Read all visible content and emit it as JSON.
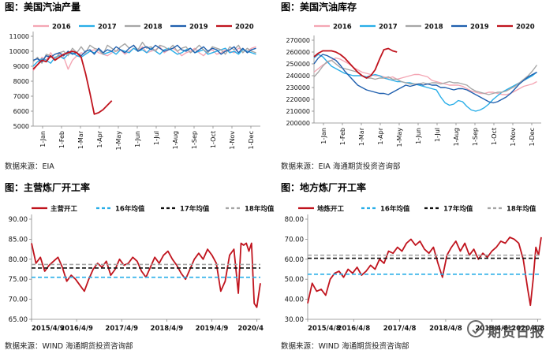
{
  "charts": [
    {
      "title": "图：美国汽油产量",
      "source": "数据来源：EIA",
      "chart_data": {
        "type": "line",
        "x_ticks": [
          "1-Jan",
          "1-Feb",
          "1-Mar",
          "1-Apr",
          "1-May",
          "1-Jun",
          "1-Jul",
          "1-Aug",
          "1-Sep",
          "1-Oct",
          "1-Nov",
          "1-Dec"
        ],
        "y_ticks": [
          5000,
          6000,
          7000,
          8000,
          9000,
          10000,
          11000
        ],
        "ylim": [
          5000,
          11000
        ],
        "x_range": [
          0,
          52
        ],
        "grid": false,
        "legend_placement": "top",
        "series": [
          {
            "name": "2016",
            "color": "#f4a6b4",
            "values": [
              8700,
              9100,
              9600,
              9400,
              9900,
              9500,
              9800,
              9600,
              8800,
              9400,
              9700,
              9900,
              9800,
              10000,
              10100,
              9900,
              9800,
              9700,
              9900,
              10000,
              10100,
              9800,
              10000,
              10200,
              10000,
              10300,
              9900,
              10000,
              10100,
              10300,
              9900,
              10100,
              10200,
              10000,
              9700,
              9900,
              10000,
              10200,
              9900,
              9700,
              10000,
              10100,
              9800,
              9900,
              10100,
              10000,
              9900,
              10200,
              10100,
              10000,
              10200,
              10300
            ]
          },
          {
            "name": "2017",
            "color": "#29aee8",
            "values": [
              9000,
              9300,
              9500,
              9400,
              9200,
              9600,
              9700,
              9500,
              9800,
              9900,
              9700,
              9600,
              9800,
              10000,
              9900,
              10100,
              9800,
              9900,
              10000,
              9800,
              10100,
              10000,
              9900,
              10200,
              10000,
              10100,
              9900,
              10200,
              10000,
              9800,
              10100,
              10200,
              10000,
              9800,
              9900,
              10100,
              10200,
              9900,
              10000,
              10100,
              9800,
              9900,
              10000,
              10100,
              10200,
              9900,
              10000,
              9800,
              10100,
              10000,
              9900,
              9800
            ]
          },
          {
            "name": "2018",
            "color": "#a6a6a6",
            "values": [
              9300,
              9600,
              9200,
              9800,
              9700,
              9400,
              9900,
              10000,
              9700,
              10200,
              9900,
              10300,
              9900,
              10400,
              10200,
              10100,
              9800,
              10400,
              10200,
              10000,
              10300,
              10500,
              10200,
              10400,
              10100,
              10600,
              10200,
              10300,
              10000,
              10400,
              10300,
              10100,
              10400,
              10000,
              10200,
              10300,
              9900,
              10100,
              10400,
              10100,
              9900,
              10300,
              10200,
              10100,
              9800,
              10300,
              10100,
              10400,
              9900,
              10200,
              10000,
              9900
            ]
          },
          {
            "name": "2019",
            "color": "#1f5fae",
            "values": [
              9400,
              9500,
              9300,
              9700,
              9600,
              9800,
              9900,
              9700,
              10000,
              9800,
              9900,
              9700,
              10000,
              10100,
              9800,
              10200,
              9900,
              10100,
              10000,
              10300,
              10100,
              9900,
              10200,
              10400,
              10000,
              10200,
              10300,
              10100,
              10400,
              10200,
              10000,
              10100,
              10200,
              10400,
              10100,
              10000,
              10200,
              9900,
              10100,
              10300,
              10000,
              10200,
              10100,
              9800,
              10000,
              10100,
              10300,
              9900,
              10200,
              9900,
              10100,
              10200
            ]
          },
          {
            "name": "2020",
            "color": "#c0141e",
            "values": [
              8800,
              9100,
              9400,
              9300,
              9700,
              9400,
              9600,
              9800,
              9900,
              10000,
              9900,
              9600,
              8500,
              7200,
              5800,
              5900,
              6100,
              6400,
              6700
            ]
          }
        ]
      }
    },
    {
      "title": "图：美国汽油库存",
      "source": "数据来源：EIA  海通期货投资咨询部",
      "chart_data": {
        "type": "line",
        "x_ticks": [
          "1-Jan",
          "1-Feb",
          "1-Mar",
          "1-Apr",
          "1-May",
          "1-Jun",
          "1-Jul",
          "1-Aug",
          "1-Sep",
          "1-Oct",
          "1-Nov",
          "1-Dec"
        ],
        "y_ticks": [
          200000,
          210000,
          220000,
          230000,
          240000,
          250000,
          260000,
          270000
        ],
        "ylim": [
          200000,
          270000
        ],
        "x_range": [
          0,
          52
        ],
        "grid": false,
        "legend_placement": "top",
        "series": [
          {
            "name": "2016",
            "color": "#f4a6b4",
            "values": [
              243000,
              246000,
              249000,
              251000,
              253000,
              255000,
              254000,
              252000,
              250000,
              247000,
              245000,
              243000,
              242000,
              241000,
              240000,
              240000,
              239000,
              238000,
              239000,
              237000,
              238000,
              239000,
              240000,
              241000,
              241000,
              240000,
              239000,
              236000,
              235000,
              234000,
              233000,
              232000,
              232000,
              232000,
              231000,
              229000,
              227000,
              226000,
              225000,
              225000,
              226000,
              226000,
              225000,
              224000,
              224000,
              225000,
              227000,
              229000,
              231000,
              232000,
              233000,
              235000
            ]
          },
          {
            "name": "2017",
            "color": "#29aee8",
            "values": [
              255000,
              258000,
              256000,
              252000,
              248000,
              246000,
              244000,
              242000,
              241000,
              240000,
              240000,
              240000,
              239000,
              240000,
              241000,
              240000,
              238000,
              237000,
              236000,
              235000,
              235000,
              234000,
              234000,
              233000,
              232000,
              231000,
              230000,
              229000,
              228000,
              222000,
              217000,
              215000,
              216000,
              219000,
              218000,
              214000,
              211000,
              210000,
              211000,
              213000,
              216000,
              220000,
              223000,
              226000,
              228000,
              230000,
              232000,
              234000,
              236000,
              238000,
              240000,
              243000
            ]
          },
          {
            "name": "2018",
            "color": "#a6a6a6",
            "values": [
              239000,
              243000,
              248000,
              252000,
              253000,
              250000,
              247000,
              246000,
              245000,
              244000,
              243000,
              240000,
              238000,
              238000,
              237000,
              238000,
              238000,
              239000,
              237000,
              237000,
              235000,
              234000,
              233000,
              233000,
              233000,
              234000,
              233000,
              234000,
              234000,
              233000,
              234000,
              235000,
              234000,
              234000,
              233000,
              232000,
              229000,
              227000,
              226000,
              225000,
              224000,
              225000,
              226000,
              226000,
              227000,
              229000,
              231000,
              234000,
              237000,
              240000,
              244000,
              249000
            ]
          },
          {
            "name": "2019",
            "color": "#1f5fae",
            "values": [
              250000,
              255000,
              258000,
              257000,
              255000,
              253000,
              249000,
              244000,
              240000,
              236000,
              232000,
              230000,
              228000,
              227000,
              226000,
              225000,
              225000,
              224000,
              226000,
              228000,
              230000,
              232000,
              231000,
              232000,
              233000,
              232000,
              233000,
              232000,
              232000,
              230000,
              230000,
              229000,
              228000,
              229000,
              229000,
              228000,
              226000,
              224000,
              222000,
              220000,
              218000,
              217000,
              218000,
              220000,
              222000,
              225000,
              229000,
              233000,
              236000,
              239000,
              241000,
              243000
            ]
          },
          {
            "name": "2020",
            "color": "#c0141e",
            "values": [
              256000,
              259000,
              261000,
              261000,
              261000,
              260000,
              258000,
              255000,
              251000,
              247000,
              243000,
              240000,
              238000,
              240000,
              245000,
              254000,
              262000,
              263000,
              261000,
              260000
            ]
          }
        ]
      }
    },
    {
      "title": "图：主营炼厂开工率",
      "source": "数据来源：WIND  海通期货投资咨询部",
      "chart_data": {
        "type": "line",
        "x_ticks": [
          "2015/4/9",
          "2016/4/9",
          "2017/4/9",
          "2018/4/9",
          "2019/4/9",
          "2020/4"
        ],
        "y_ticks": [
          65.0,
          70.0,
          75.0,
          80.0,
          85.0,
          90.0
        ],
        "y_tick_labels": [
          "65.00",
          "70.00",
          "75.00",
          "80.00",
          "85.00",
          "90.00"
        ],
        "ylim": [
          65,
          90
        ],
        "x_range": [
          0,
          260
        ],
        "grid": false,
        "legend_placement": "top",
        "series": [
          {
            "name": "主营开工",
            "color": "#c0141e",
            "x": [
              0,
              5,
              10,
              15,
              20,
              25,
              30,
              35,
              40,
              45,
              50,
              55,
              60,
              65,
              70,
              75,
              80,
              85,
              90,
              95,
              100,
              105,
              110,
              115,
              120,
              125,
              130,
              135,
              140,
              145,
              150,
              155,
              160,
              165,
              170,
              175,
              180,
              185,
              190,
              195,
              200,
              205,
              210,
              215,
              220,
              225,
              230,
              235,
              238,
              241,
              244,
              247,
              250,
              253,
              256,
              260
            ],
            "values": [
              84.0,
              79.0,
              80.5,
              77.0,
              78.5,
              79.5,
              80.5,
              78.0,
              74.5,
              76.0,
              75.0,
              73.5,
              72.0,
              75.0,
              77.5,
              79.0,
              78.0,
              79.5,
              76.0,
              77.5,
              80.0,
              78.5,
              79.0,
              80.5,
              79.5,
              77.0,
              75.5,
              78.0,
              80.5,
              79.0,
              81.0,
              82.0,
              80.0,
              78.5,
              76.5,
              75.0,
              77.5,
              80.0,
              81.5,
              80.0,
              82.5,
              81.0,
              79.0,
              72.0,
              74.5,
              81.0,
              82.5,
              71.5,
              84.0,
              83.5,
              84.0,
              82.0,
              84.0,
              69.0,
              68.0,
              74.0
            ]
          },
          {
            "name": "16年均值",
            "color": "#29aee8",
            "values": [
              75.5
            ]
          },
          {
            "name": "17年均值",
            "color": "#111111",
            "values": [
              77.8
            ]
          },
          {
            "name": "18年均值",
            "color": "#a6a6a6",
            "values": [
              78.7
            ]
          }
        ]
      }
    },
    {
      "title": "图：地方炼厂开工率",
      "source": "数据来源：WIND  海通期货投资咨询部",
      "chart_data": {
        "type": "line",
        "x_ticks": [
          "2015/4/8",
          "2016/4/8",
          "2017/4/8",
          "2018/4/8",
          "2019/4/8",
          "2020/4/8"
        ],
        "y_ticks": [
          30.0,
          40.0,
          50.0,
          60.0,
          70.0,
          80.0
        ],
        "y_tick_labels": [
          "30.00",
          "40.00",
          "50.00",
          "60.00",
          "70.00",
          "80.00"
        ],
        "ylim": [
          30,
          80
        ],
        "x_range": [
          0,
          260
        ],
        "grid": false,
        "legend_placement": "top",
        "series": [
          {
            "name": "地炼开工",
            "color": "#c0141e",
            "x": [
              0,
              5,
              10,
              15,
              20,
              25,
              30,
              35,
              40,
              45,
              50,
              55,
              60,
              65,
              70,
              75,
              80,
              85,
              90,
              95,
              100,
              105,
              110,
              115,
              120,
              125,
              130,
              135,
              140,
              145,
              150,
              155,
              160,
              165,
              170,
              175,
              180,
              185,
              190,
              195,
              200,
              205,
              210,
              215,
              220,
              225,
              230,
              235,
              240,
              245,
              248,
              251,
              254,
              257,
              260
            ],
            "values": [
              38.0,
              48.0,
              44.0,
              45.0,
              42.0,
              50.0,
              53.0,
              54.0,
              51.0,
              55.0,
              53.0,
              56.0,
              52.0,
              54.0,
              57.0,
              55.0,
              60.0,
              58.0,
              64.0,
              63.0,
              66.0,
              64.0,
              68.0,
              70.0,
              67.0,
              69.0,
              65.0,
              63.0,
              66.0,
              58.0,
              51.0,
              62.0,
              66.0,
              69.0,
              64.0,
              68.0,
              62.0,
              65.0,
              60.0,
              63.0,
              61.0,
              64.0,
              66.0,
              69.0,
              68.0,
              71.0,
              70.0,
              68.0,
              60.0,
              45.0,
              37.0,
              50.0,
              66.0,
              62.0,
              71.0
            ]
          },
          {
            "name": "16年均值",
            "color": "#29aee8",
            "values": [
              52.5
            ]
          },
          {
            "name": "17年均值",
            "color": "#111111",
            "values": [
              60.5
            ]
          },
          {
            "name": "18年均值",
            "color": "#a6a6a6",
            "values": [
              62.0
            ]
          }
        ]
      }
    }
  ],
  "watermark": "期货日报"
}
